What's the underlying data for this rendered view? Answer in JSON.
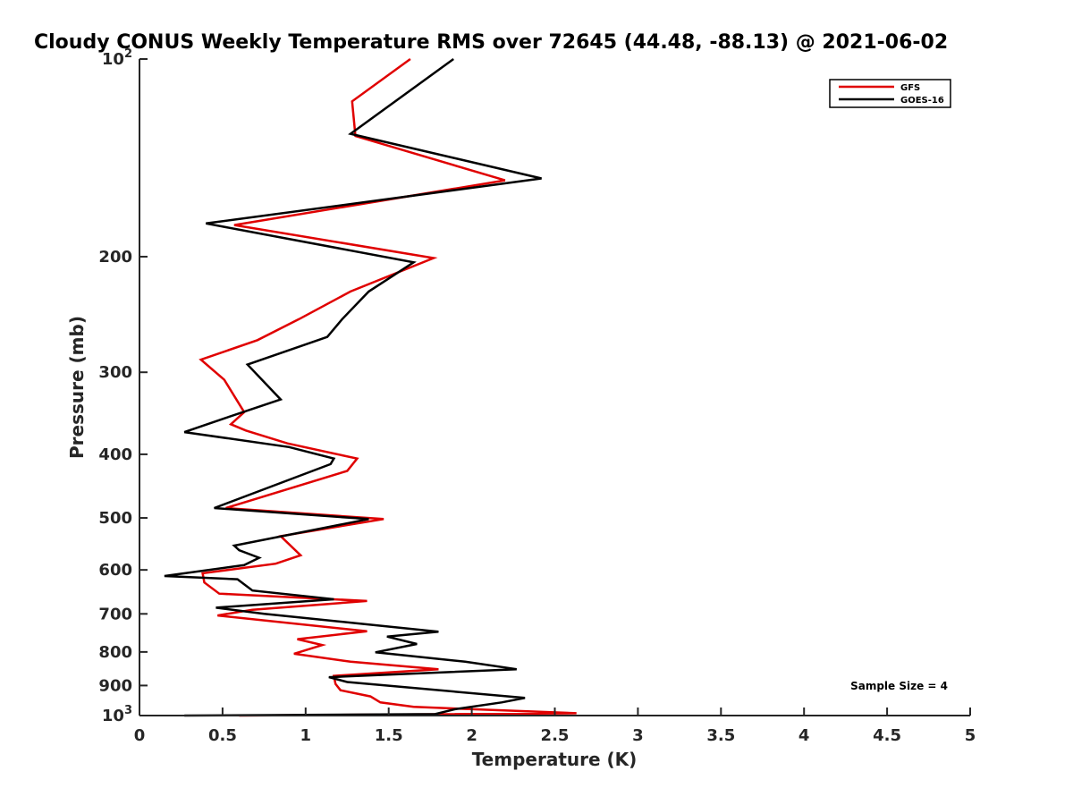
{
  "chart_data": {
    "type": "line",
    "title": "Cloudy CONUS Weekly Temperature RMS over 72645 (44.48, -88.13) @ 2021-06-02",
    "xlabel": "Temperature (K)",
    "ylabel": "Pressure (mb)",
    "xlim": [
      0,
      5
    ],
    "ylim": [
      100,
      1000
    ],
    "y_scale": "log",
    "y_reversed": true,
    "grid": false,
    "legend_position": "top-right",
    "x_ticks": [
      {
        "value": 0,
        "label": "0"
      },
      {
        "value": 0.5,
        "label": "0.5"
      },
      {
        "value": 1,
        "label": "1"
      },
      {
        "value": 1.5,
        "label": "1.5"
      },
      {
        "value": 2,
        "label": "2"
      },
      {
        "value": 2.5,
        "label": "2.5"
      },
      {
        "value": 3,
        "label": "3"
      },
      {
        "value": 3.5,
        "label": "3.5"
      },
      {
        "value": 4,
        "label": "4"
      },
      {
        "value": 4.5,
        "label": "4.5"
      },
      {
        "value": 5,
        "label": "5"
      }
    ],
    "y_ticks": [
      {
        "value": 100,
        "base": "10",
        "exp": "2"
      },
      {
        "value": 200,
        "label": "200"
      },
      {
        "value": 300,
        "label": "300"
      },
      {
        "value": 400,
        "label": "400"
      },
      {
        "value": 500,
        "label": "500"
      },
      {
        "value": 600,
        "label": "600"
      },
      {
        "value": 700,
        "label": "700"
      },
      {
        "value": 800,
        "label": "800"
      },
      {
        "value": 900,
        "label": "900"
      },
      {
        "value": 1000,
        "base": "10",
        "exp": "3"
      }
    ],
    "series": [
      {
        "name": "GFS",
        "color": "#e00000",
        "points": [
          [
            1.63,
            100
          ],
          [
            1.28,
            116
          ],
          [
            1.3,
            131
          ],
          [
            2.2,
            153
          ],
          [
            0.57,
            179
          ],
          [
            1.77,
            201
          ],
          [
            1.27,
            226
          ],
          [
            0.96,
            249
          ],
          [
            0.71,
            268
          ],
          [
            0.37,
            287
          ],
          [
            0.51,
            308
          ],
          [
            0.63,
            345
          ],
          [
            0.55,
            360
          ],
          [
            0.64,
            368
          ],
          [
            0.89,
            385
          ],
          [
            1.31,
            406
          ],
          [
            1.25,
            424
          ],
          [
            0.52,
            483
          ],
          [
            1.47,
            502
          ],
          [
            0.85,
            533
          ],
          [
            0.97,
            570
          ],
          [
            0.82,
            587
          ],
          [
            0.38,
            607
          ],
          [
            0.39,
            627
          ],
          [
            0.48,
            652
          ],
          [
            1.37,
            669
          ],
          [
            0.68,
            690
          ],
          [
            0.47,
            704
          ],
          [
            1.37,
            744
          ],
          [
            0.95,
            765
          ],
          [
            1.1,
            781
          ],
          [
            0.93,
            805
          ],
          [
            1.27,
            828
          ],
          [
            1.8,
            850
          ],
          [
            1.17,
            870
          ],
          [
            1.18,
            895
          ],
          [
            1.21,
            915
          ],
          [
            1.39,
            935
          ],
          [
            1.45,
            955
          ],
          [
            1.65,
            970
          ],
          [
            2.63,
            992
          ],
          [
            0.6,
            1000
          ]
        ]
      },
      {
        "name": "GOES-16",
        "color": "#000000",
        "points": [
          [
            1.89,
            100
          ],
          [
            1.27,
            130
          ],
          [
            2.42,
            152
          ],
          [
            0.4,
            178
          ],
          [
            1.65,
            204
          ],
          [
            1.38,
            226
          ],
          [
            1.22,
            249
          ],
          [
            1.13,
            265
          ],
          [
            0.65,
            292
          ],
          [
            0.85,
            330
          ],
          [
            0.52,
            352
          ],
          [
            0.27,
            370
          ],
          [
            0.9,
            390
          ],
          [
            1.17,
            406
          ],
          [
            1.15,
            414
          ],
          [
            0.45,
            483
          ],
          [
            1.38,
            502
          ],
          [
            0.57,
            551
          ],
          [
            0.6,
            560
          ],
          [
            0.72,
            575
          ],
          [
            0.63,
            590
          ],
          [
            0.15,
            613
          ],
          [
            0.59,
            620
          ],
          [
            0.68,
            645
          ],
          [
            1.17,
            665
          ],
          [
            0.46,
            685
          ],
          [
            0.75,
            700
          ],
          [
            1.8,
            745
          ],
          [
            1.49,
            758
          ],
          [
            1.67,
            778
          ],
          [
            1.42,
            801
          ],
          [
            1.96,
            828
          ],
          [
            2.27,
            850
          ],
          [
            1.14,
            874
          ],
          [
            1.25,
            889
          ],
          [
            2.32,
            940
          ],
          [
            2.18,
            955
          ],
          [
            1.9,
            978
          ],
          [
            1.78,
            995
          ],
          [
            0.27,
            1000
          ]
        ]
      }
    ],
    "annotations": [
      {
        "text": "Sample Size = 4",
        "position": "bottom-right"
      }
    ]
  }
}
